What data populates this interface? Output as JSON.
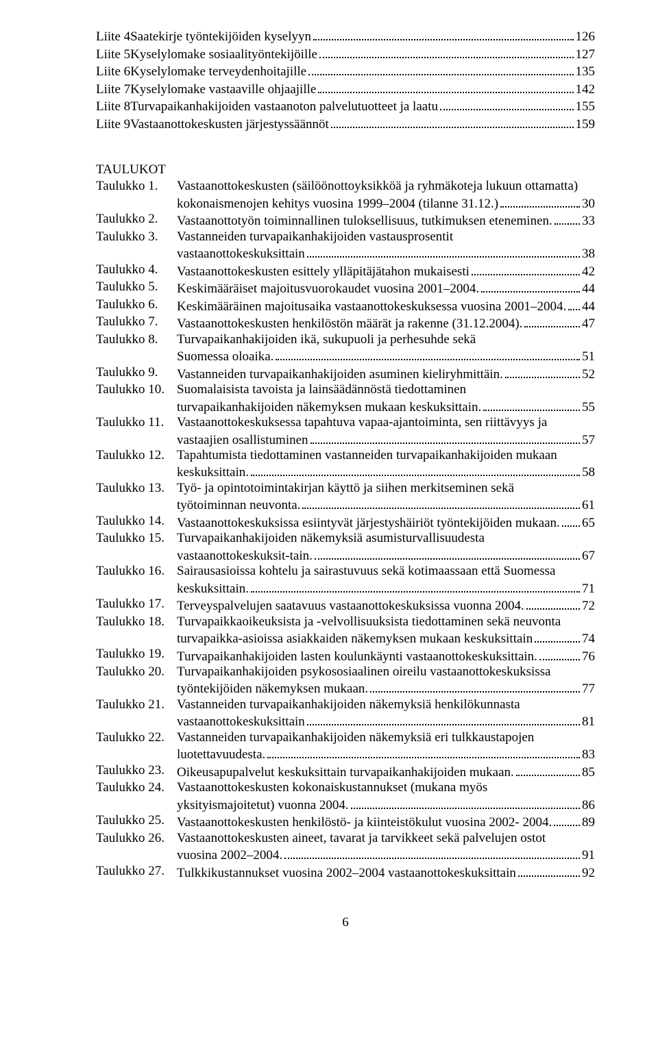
{
  "liite": [
    {
      "label": "Liite 4",
      "title": "Saatekirje työntekijöiden kyselyyn",
      "page": "126"
    },
    {
      "label": "Liite 5",
      "title": "Kyselylomake sosiaalityöntekijöille",
      "page": "127"
    },
    {
      "label": "Liite 6",
      "title": "Kyselylomake terveydenhoitajille",
      "page": "135"
    },
    {
      "label": "Liite 7",
      "title": "Kyselylomake vastaaville ohjaajille",
      "page": "142"
    },
    {
      "label": "Liite 8",
      "title": "Turvapaikanhakijoiden vastaanoton palvelutuotteet ja laatu",
      "page": "155"
    },
    {
      "label": "Liite 9",
      "title": "Vastaanottokeskusten järjestyssäännöt",
      "page": "159"
    }
  ],
  "taulukotHeading": "TAULUKOT",
  "taulukko": [
    {
      "n": "1",
      "lines": [
        "Vastaanottokeskusten (säilöönottoyksikköä ja ryhmäkoteja lukuun ottamatta)",
        "kokonaismenojen kehitys vuosina 1999–2004 (tilanne 31.12.)"
      ],
      "page": "30"
    },
    {
      "n": "2",
      "lines": [
        "Vastaanottotyön toiminnallinen tuloksellisuus, tutkimuksen eteneminen."
      ],
      "page": "33"
    },
    {
      "n": "3",
      "lines": [
        "Vastanneiden turvapaikanhakijoiden vastausprosentit",
        "vastaanottokeskuksittain"
      ],
      "page": "38"
    },
    {
      "n": "4",
      "lines": [
        "Vastaanottokeskusten esittely ylläpitäjätahon mukaisesti"
      ],
      "page": "42"
    },
    {
      "n": "5",
      "lines": [
        "Keskimääräiset majoitusvuorokaudet vuosina 2001–2004."
      ],
      "page": "44"
    },
    {
      "n": "6",
      "lines": [
        "Keskimääräinen majoitusaika vastaanottokeskuksessa vuosina 2001–2004."
      ],
      "page": "44"
    },
    {
      "n": "7",
      "lines": [
        "Vastaanottokeskusten henkilöstön määrät ja rakenne (31.12.2004)."
      ],
      "page": "47"
    },
    {
      "n": "8",
      "lines": [
        "Turvapaikanhakijoiden ikä, sukupuoli ja  perhesuhde sekä",
        "Suomessa oloaika."
      ],
      "page": "51"
    },
    {
      "n": "9",
      "lines": [
        "Vastanneiden turvapaikanhakijoiden asuminen kieliryhmittäin."
      ],
      "page": "52"
    },
    {
      "n": "10",
      "lines": [
        "Suomalaisista tavoista ja lainsäädännöstä tiedottaminen",
        "turvapaikanhakijoiden näkemyksen mukaan  keskuksittain."
      ],
      "page": "55"
    },
    {
      "n": "11",
      "lines": [
        "Vastaanottokeskuksessa tapahtuva vapaa-ajantoiminta, sen riittävyys ja",
        "vastaajien osallistuminen"
      ],
      "page": "57"
    },
    {
      "n": "12",
      "lines": [
        "Tapahtumista  tiedottaminen vastanneiden turvapaikanhakijoiden mukaan",
        "keskuksittain."
      ],
      "page": "58"
    },
    {
      "n": "13",
      "lines": [
        "Työ- ja opintotoimintakirjan käyttö ja siihen merkitseminen sekä",
        "työtoiminnan neuvonta."
      ],
      "page": "61"
    },
    {
      "n": "14",
      "lines": [
        "Vastaanottokeskuksissa esiintyvät järjestyshäiriöt työntekijöiden mukaan."
      ],
      "page": "65"
    },
    {
      "n": "15",
      "lines": [
        "Turvapaikanhakijoiden näkemyksiä asumisturvallisuudesta",
        "vastaanottokeskuksit-tain."
      ],
      "page": "67"
    },
    {
      "n": "16",
      "lines": [
        "Sairausasioissa kohtelu ja sairastuvuus sekä kotimaassaan että Suomessa",
        "keskuksittain."
      ],
      "page": "71"
    },
    {
      "n": "17",
      "lines": [
        "Terveyspalvelujen saatavuus vastaanottokeskuksissa vuonna 2004."
      ],
      "page": "72"
    },
    {
      "n": "18",
      "lines": [
        "Turvapaikkaoikeuksista ja -velvollisuuksista tiedottaminen sekä neuvonta",
        "turvapaikka-asioissa asiakkaiden näkemyksen mukaan  keskuksittain"
      ],
      "page": "74"
    },
    {
      "n": "19",
      "lines": [
        "Turvapaikanhakijoiden lasten koulunkäynti vastaanottokeskuksittain."
      ],
      "page": "76"
    },
    {
      "n": "20",
      "lines": [
        "Turvapaikanhakijoiden psykososiaalinen oireilu vastaanottokeskuksissa",
        "työntekijöiden näkemyksen mukaan."
      ],
      "page": "77"
    },
    {
      "n": "21",
      "lines": [
        "Vastanneiden turvapaikanhakijoiden näkemyksiä henkilökunnasta",
        "vastaanottokeskuksittain"
      ],
      "page": "81"
    },
    {
      "n": "22",
      "lines": [
        "Vastanneiden turvapaikanhakijoiden näkemyksiä eri tulkkaustapojen",
        "luotettavuudesta."
      ],
      "page": "83"
    },
    {
      "n": "23",
      "lines": [
        "Oikeusapupalvelut keskuksittain turvapaikanhakijoiden mukaan."
      ],
      "page": "85"
    },
    {
      "n": "24",
      "lines": [
        "Vastaanottokeskusten kokonaiskustannukset (mukana myös",
        "yksityismajoitetut) vuonna 2004."
      ],
      "page": "86"
    },
    {
      "n": "25",
      "lines": [
        "Vastaanottokeskusten henkilöstö- ja kiinteistökulut vuosina 2002- 2004."
      ],
      "page": "89"
    },
    {
      "n": "26",
      "lines": [
        "Vastaanottokeskusten aineet, tavarat ja tarvikkeet sekä palvelujen ostot",
        "vuosina 2002–2004."
      ],
      "page": "91"
    },
    {
      "n": "27",
      "lines": [
        "Tulkkikustannukset vuosina 2002–2004  vastaanottokeskuksittain"
      ],
      "page": "92"
    }
  ],
  "taulukkoPrefix": "Taulukko ",
  "taulukkoSuffix": ".",
  "pageNumber": "6"
}
